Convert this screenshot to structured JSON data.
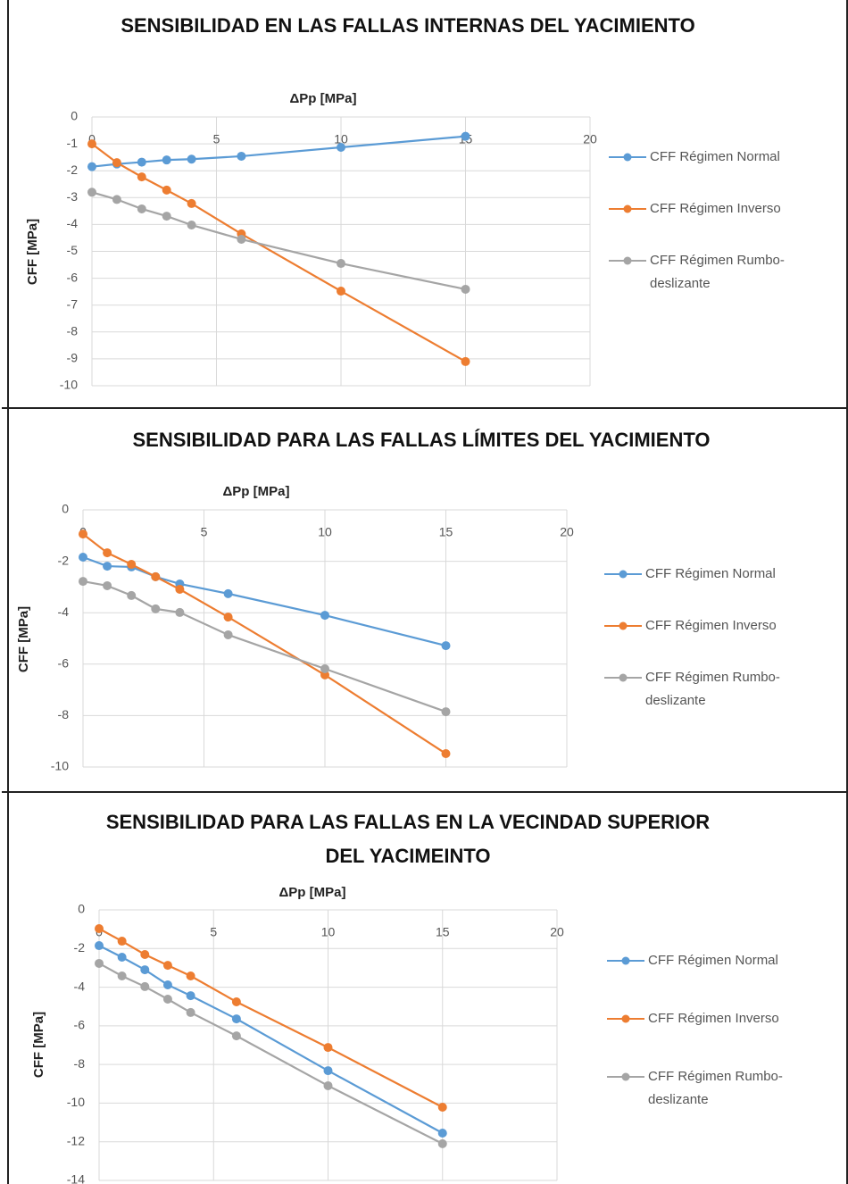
{
  "chart_data": [
    {
      "type": "line",
      "title": "SENSIBILIDAD EN LAS FALLAS INTERNAS DEL YACIMIENTO",
      "x_label": "ΔPp [MPa]",
      "y_label": "CFF [MPa]",
      "x": [
        0,
        1,
        2,
        3,
        4,
        6,
        10,
        15
      ],
      "series": [
        {
          "name": "CFF Régimen Normal",
          "color": "#5b9bd5",
          "values": [
            -1.85,
            -1.75,
            -1.68,
            -1.6,
            -1.57,
            -1.46,
            -1.13,
            -0.72
          ]
        },
        {
          "name": "CFF Régimen Inverso",
          "color": "#ed7d31",
          "values": [
            -1.0,
            -1.7,
            -2.23,
            -2.72,
            -3.22,
            -4.35,
            -6.48,
            -9.1
          ]
        },
        {
          "name": "CFF Régimen Rumbo-deslizante",
          "color": "#a5a5a5",
          "values": [
            -2.8,
            -3.07,
            -3.42,
            -3.69,
            -4.02,
            -4.55,
            -5.45,
            -6.41
          ]
        }
      ],
      "xlim": [
        0,
        20
      ],
      "xticks": [
        0,
        5,
        10,
        15,
        20
      ],
      "ylim": [
        -10,
        0
      ],
      "yticks": [
        0,
        -1,
        -2,
        -3,
        -4,
        -5,
        -6,
        -7,
        -8,
        -9,
        -10
      ],
      "grid": true,
      "xaxis_position": "top",
      "legend_position": "right"
    },
    {
      "type": "line",
      "title": "SENSIBILIDAD PARA LAS FALLAS LÍMITES DEL YACIMIENTO",
      "x_label": "ΔPp [MPa]",
      "y_label": "CFF [MPa]",
      "x": [
        0,
        1,
        2,
        3,
        4,
        6,
        10,
        15
      ],
      "series": [
        {
          "name": "CFF Régimen Normal",
          "color": "#5b9bd5",
          "values": [
            -1.84,
            -2.19,
            -2.22,
            -2.6,
            -2.88,
            -3.26,
            -4.1,
            -5.28
          ]
        },
        {
          "name": "CFF Régimen Inverso",
          "color": "#ed7d31",
          "values": [
            -0.94,
            -1.67,
            -2.12,
            -2.6,
            -3.09,
            -4.17,
            -6.42,
            -9.48
          ]
        },
        {
          "name": "CFF Régimen Rumbo-deslizante",
          "color": "#a5a5a5",
          "values": [
            -2.78,
            -2.95,
            -3.33,
            -3.85,
            -3.99,
            -4.86,
            -6.18,
            -7.85
          ]
        }
      ],
      "xlim": [
        0,
        20
      ],
      "xticks": [
        0,
        5,
        10,
        15,
        20
      ],
      "ylim": [
        -10,
        0
      ],
      "yticks": [
        0,
        -2,
        -4,
        -6,
        -8,
        -10
      ],
      "grid": true,
      "xaxis_position": "top",
      "legend_position": "right"
    },
    {
      "type": "line",
      "title": "SENSIBILIDAD PARA LAS FALLAS EN LA VECINDAD SUPERIOR DEL YACIMEINTO",
      "x_label": "ΔPp [MPa]",
      "y_label": "CFF [MPa]",
      "x": [
        0,
        1,
        2,
        3,
        4,
        6,
        10,
        15
      ],
      "series": [
        {
          "name": "CFF Régimen Normal",
          "color": "#5b9bd5",
          "values": [
            -1.85,
            -2.45,
            -3.1,
            -3.88,
            -4.44,
            -5.64,
            -8.32,
            -11.55
          ]
        },
        {
          "name": "CFF Régimen Inverso",
          "color": "#ed7d31",
          "values": [
            -0.97,
            -1.62,
            -2.31,
            -2.87,
            -3.42,
            -4.76,
            -7.12,
            -10.21
          ]
        },
        {
          "name": "CFF Régimen Rumbo-deslizante",
          "color": "#a5a5a5",
          "values": [
            -2.77,
            -3.42,
            -3.97,
            -4.62,
            -5.31,
            -6.52,
            -9.1,
            -12.1
          ]
        }
      ],
      "xlim": [
        0,
        20
      ],
      "xticks": [
        0,
        5,
        10,
        15,
        20
      ],
      "ylim": [
        -14,
        0
      ],
      "yticks": [
        0,
        -2,
        -4,
        -6,
        -8,
        -10,
        -12,
        -14
      ],
      "grid": true,
      "xaxis_position": "top",
      "legend_position": "right"
    }
  ]
}
